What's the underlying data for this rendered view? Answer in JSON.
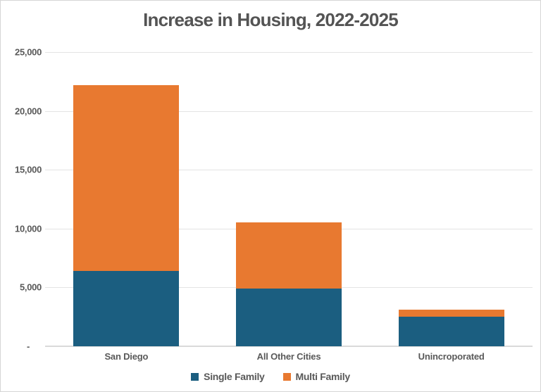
{
  "title": "Increase in Housing, 2022-2025",
  "chart_data": {
    "type": "bar",
    "stacked": true,
    "title": "Increase in Housing, 2022-2025",
    "categories": [
      "San Diego",
      "All Other Cities",
      "Unincroporated"
    ],
    "series": [
      {
        "name": "Single Family",
        "color": "#1B5E80",
        "values": [
          6400,
          4900,
          2500
        ]
      },
      {
        "name": "Multi Family",
        "color": "#E87930",
        "values": [
          15800,
          5600,
          600
        ]
      }
    ],
    "totals": [
      22200,
      10500,
      3100
    ],
    "xlabel": "",
    "ylabel": "",
    "ylim": [
      0,
      25000
    ],
    "ytick_interval": 5000,
    "ytick_labels": [
      "-",
      "5,000",
      "10,000",
      "15,000",
      "20,000",
      "25,000"
    ],
    "grid": true,
    "legend_position": "bottom"
  },
  "colors": {
    "single_family": "#1B5E80",
    "multi_family": "#E87930",
    "title_text": "#545454",
    "axis_text": "#595959",
    "gridline": "#E4E4E4",
    "axis_line": "#D9D9D9",
    "background": "#FFFFFF",
    "border": "#D6D6D6"
  }
}
